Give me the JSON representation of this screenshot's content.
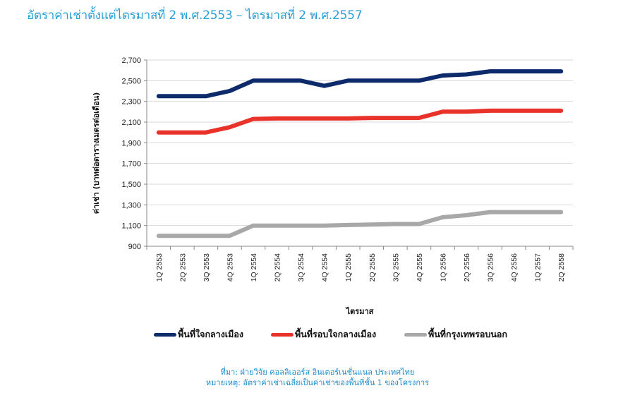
{
  "title": "อัตราค่าเช่าตั้งแต่ไตรมาสที่ 2 พ.ศ.2553 – ไตรมาสที่ 2 พ.ศ.2557",
  "colors": {
    "title": "#2aa0d8",
    "source": "#1b8ccd"
  },
  "chart_data": {
    "type": "line",
    "title": "อัตราค่าเช่าตั้งแต่ไตรมาสที่ 2 พ.ศ.2553 – ไตรมาสที่ 2 พ.ศ.2557",
    "xlabel": "ไตรมาส",
    "ylabel": "ค่าเช่า (บาทต่อตารางเมตรต่อเดือน)",
    "ylim": [
      900,
      2700
    ],
    "yticks": [
      "900",
      "1,100",
      "1,300",
      "1,500",
      "1,700",
      "1,900",
      "2,100",
      "2,300",
      "2,500",
      "2,700"
    ],
    "ytick_values": [
      900,
      1100,
      1300,
      1500,
      1700,
      1900,
      2100,
      2300,
      2500,
      2700
    ],
    "grid": true,
    "legend_position": "bottom",
    "categories": [
      "1Q 2553",
      "2Q 2553",
      "3Q 2553",
      "4Q 2553",
      "1Q 2554",
      "2Q 2554",
      "3Q 2554",
      "4Q 2554",
      "1Q 2555",
      "2Q 2555",
      "3Q 2555",
      "4Q 2555",
      "1Q 2556",
      "2Q 2556",
      "3Q 2556",
      "4Q 2556",
      "1Q 2557",
      "2Q 2558"
    ],
    "series": [
      {
        "name": "พื้นที่ใจกลางเมือง",
        "color": "#0d2a6b",
        "values": [
          2350,
          2350,
          2350,
          2400,
          2500,
          2500,
          2500,
          2450,
          2500,
          2500,
          2500,
          2500,
          2550,
          2560,
          2590,
          2590,
          2590,
          2590
        ]
      },
      {
        "name": "พื้นที่รอบใจกลางเมือง",
        "color": "#e8322a",
        "values": [
          2000,
          2000,
          2000,
          2050,
          2130,
          2135,
          2135,
          2135,
          2135,
          2140,
          2140,
          2140,
          2200,
          2200,
          2210,
          2210,
          2210,
          2210
        ]
      },
      {
        "name": "พื้นที่กรุงเทพรอบนอก",
        "color": "#a8a8a8",
        "values": [
          1000,
          1000,
          1000,
          1000,
          1100,
          1100,
          1100,
          1100,
          1105,
          1110,
          1115,
          1115,
          1180,
          1200,
          1230,
          1230,
          1230,
          1230
        ]
      }
    ]
  },
  "source": "ที่มา: ฝ่ายวิจัย คอลลิเออร์ส อินเตอร์เนชั่นแนล ประเทศไทย",
  "note": "หมายเหตุ: อัตราค่าเช่าเฉลี่ยเป็นค่าเช่าของพื้นที่ชั้น 1 ของโครงการ"
}
